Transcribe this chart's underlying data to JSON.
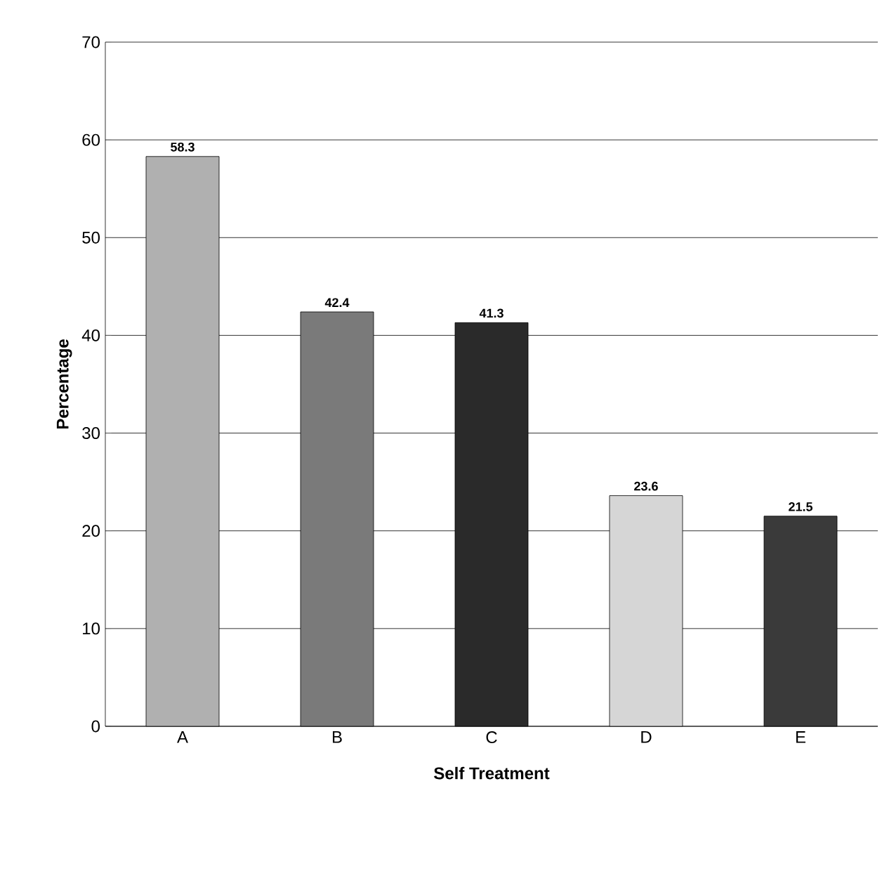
{
  "chart_data": {
    "type": "bar",
    "xlabel": "Self Treatment",
    "ylabel": "Percentage",
    "categories": [
      "A",
      "B",
      "C",
      "D",
      "E"
    ],
    "values": [
      58.3,
      42.4,
      41.3,
      23.6,
      21.5
    ],
    "colors": [
      "#b0b0b0",
      "#7a7a7a",
      "#2a2a2a",
      "#d6d6d6",
      "#3a3a3a"
    ],
    "ylim": [
      0,
      70
    ],
    "yticks": [
      0,
      10,
      20,
      30,
      40,
      50,
      60,
      70
    ],
    "grid": "y",
    "data_labels": true
  }
}
